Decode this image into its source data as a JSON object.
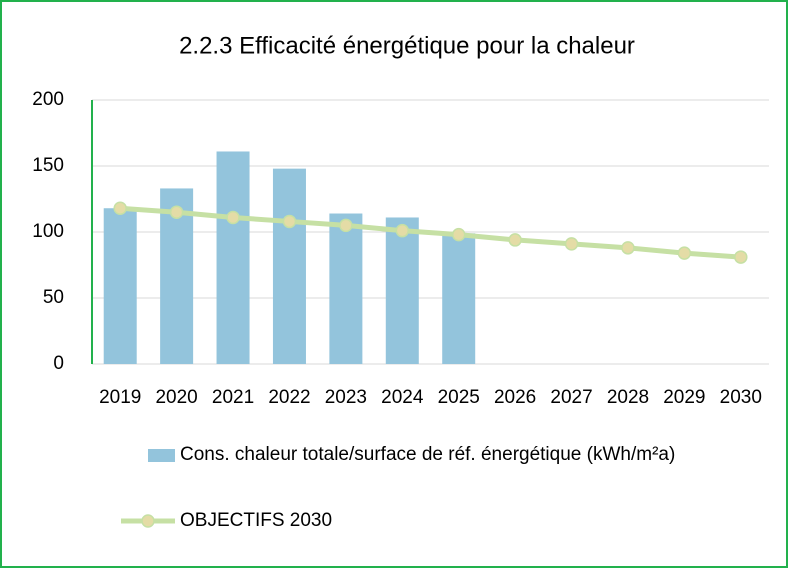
{
  "chart_data": {
    "type": "bar+line",
    "title": "2.2.3 Efficacité énergétique pour la chaleur",
    "categories": [
      "2019",
      "2020",
      "2021",
      "2022",
      "2023",
      "2024",
      "2025",
      "2026",
      "2027",
      "2028",
      "2029",
      "2030"
    ],
    "series": [
      {
        "name": "Cons. chaleur totale/surface de réf. énergétique (kWh/m²a)",
        "type": "bar",
        "color": "#93c4dc",
        "values": [
          118,
          133,
          161,
          148,
          114,
          111,
          99,
          null,
          null,
          null,
          null,
          null
        ]
      },
      {
        "name": "OBJECTIFS 2030",
        "type": "line",
        "color": "#c6e0a4",
        "marker_color": "#e4dca6",
        "values": [
          118,
          115,
          111,
          108,
          105,
          101,
          98,
          94,
          91,
          88,
          84,
          81
        ]
      }
    ],
    "ylim": [
      0,
      200
    ],
    "yticks": [
      0,
      50,
      100,
      150,
      200
    ],
    "grid": true
  }
}
